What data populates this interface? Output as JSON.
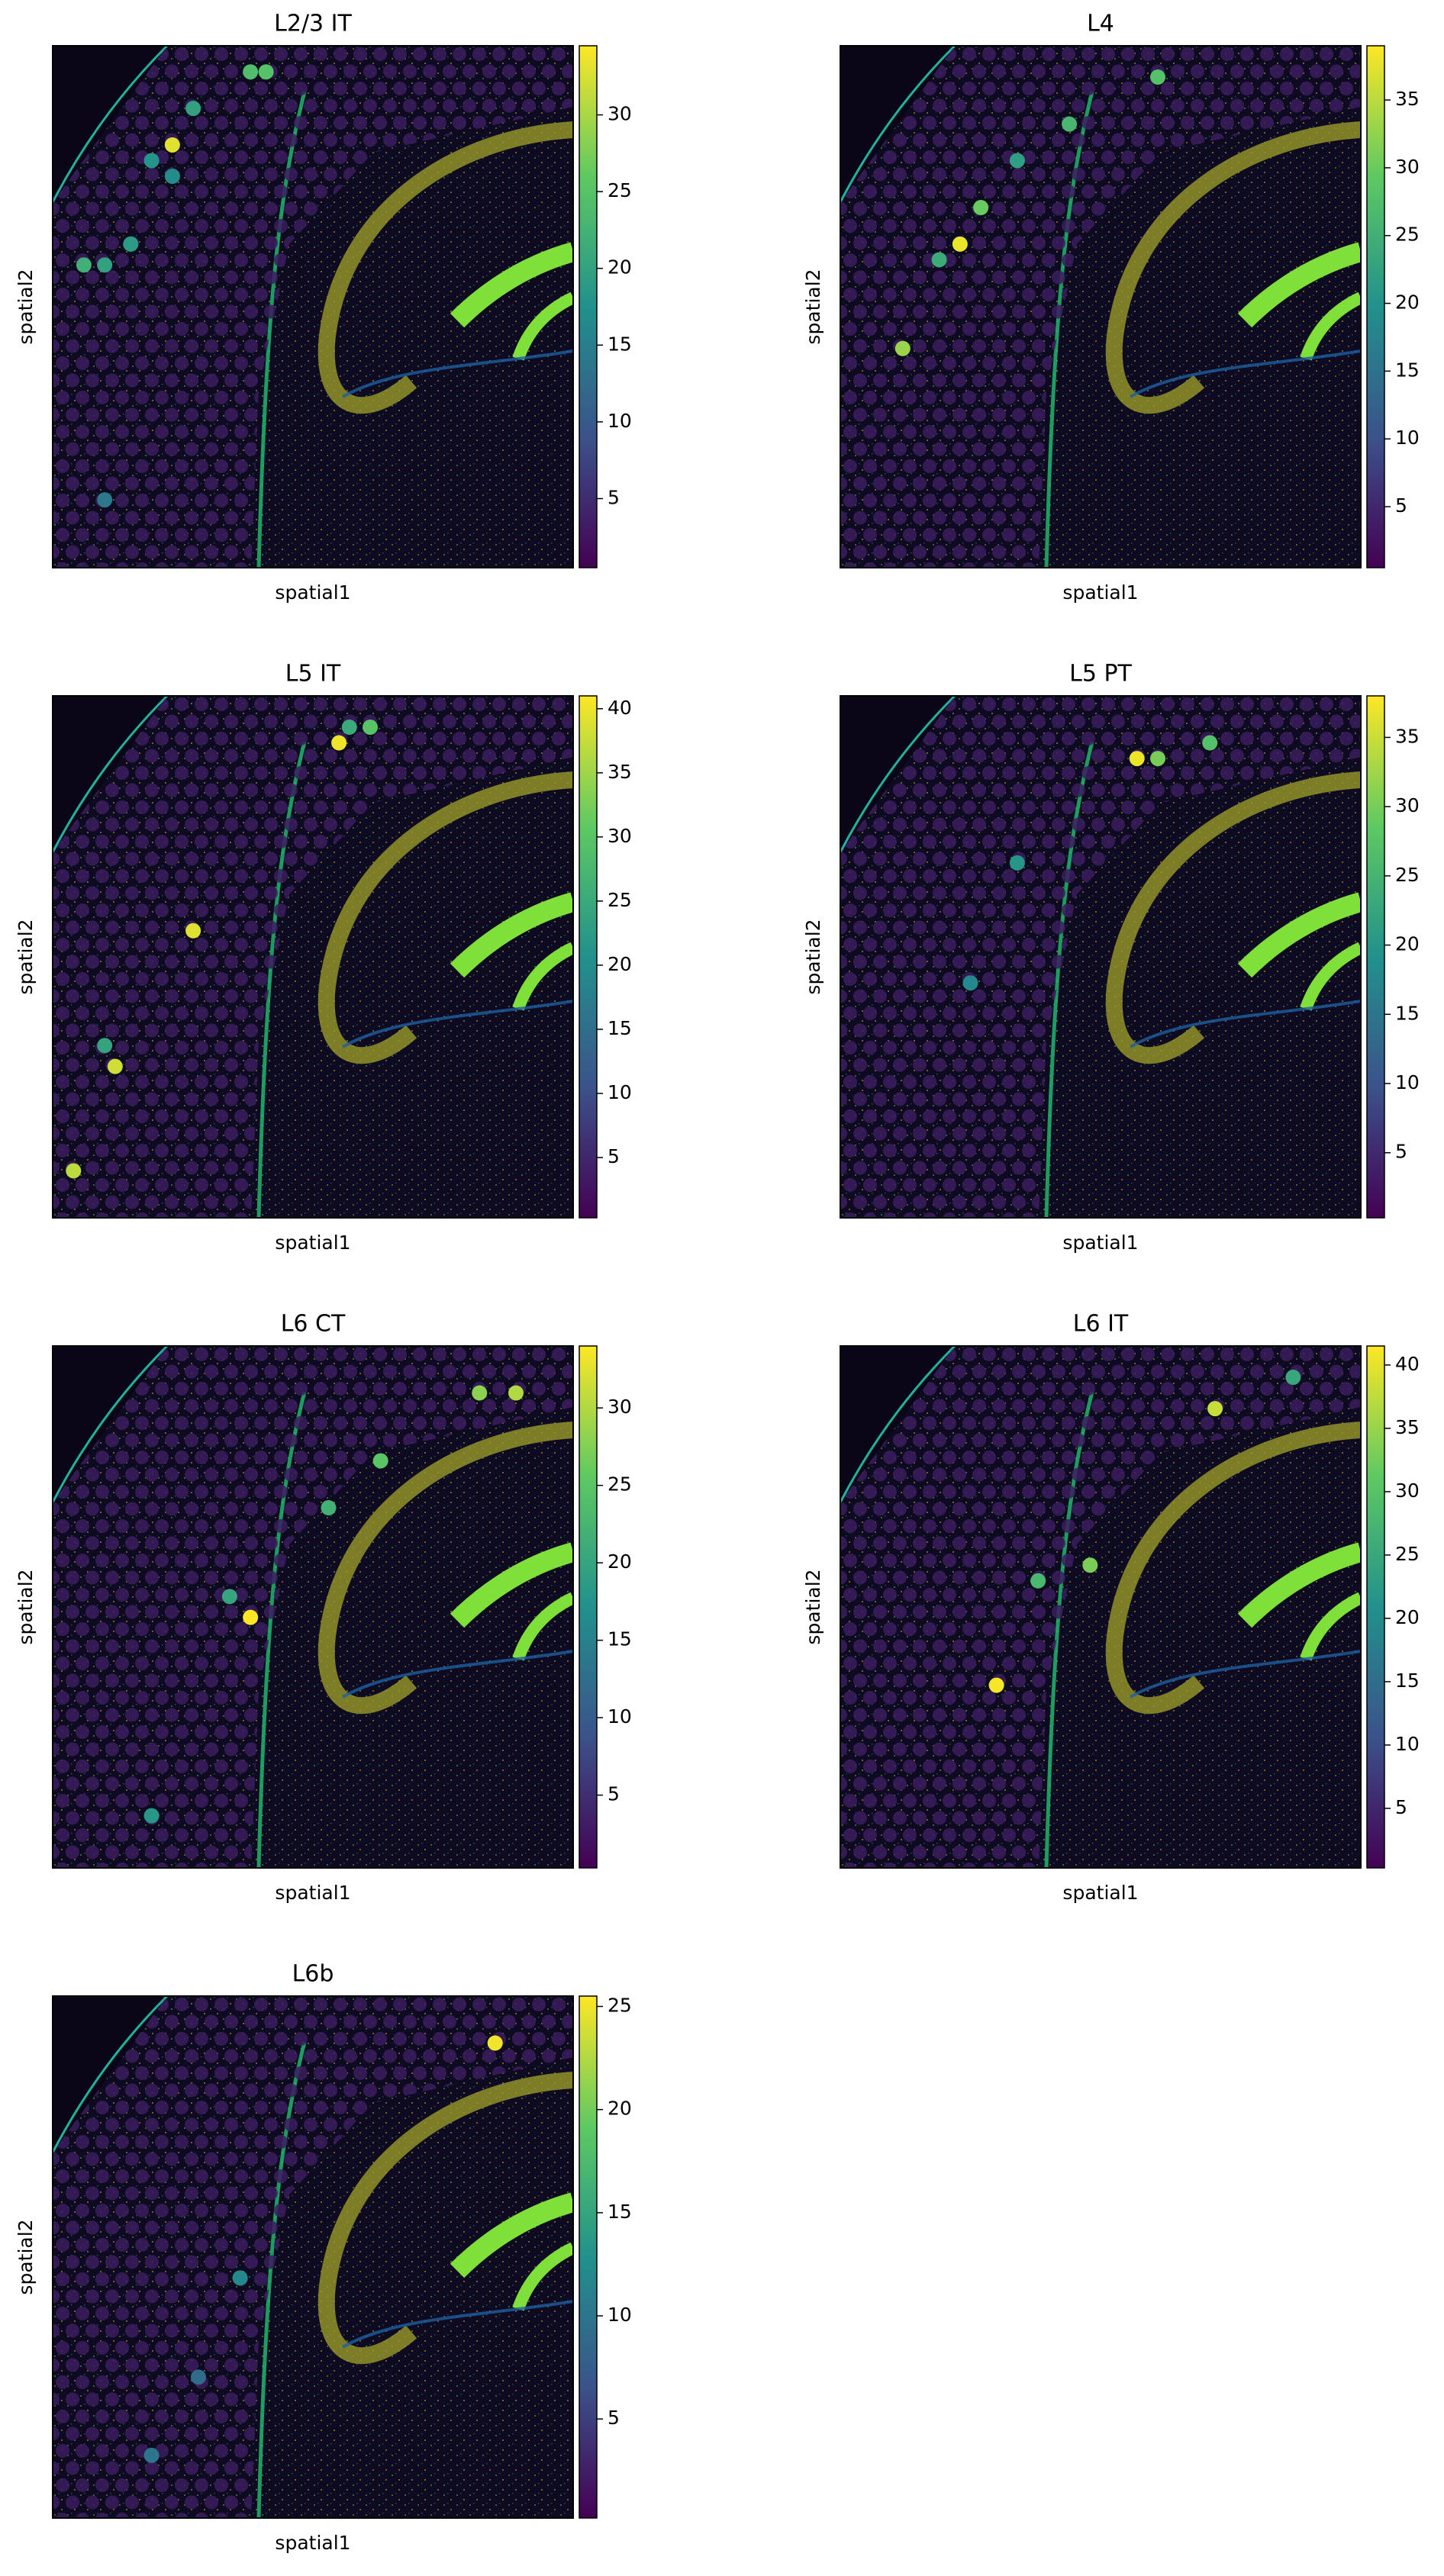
{
  "chart_data": [
    {
      "type": "scatter",
      "title": "L2/3 IT",
      "xlabel": "spatial1",
      "ylabel": "spatial2",
      "xlim": [
        0,
        1
      ],
      "ylim": [
        1,
        0
      ],
      "colormap": "viridis",
      "x": [
        0.23,
        0.38,
        0.41,
        0.06,
        0.1,
        0.15,
        0.27,
        0.19,
        0.23,
        0.1
      ],
      "y": [
        0.19,
        0.05,
        0.05,
        0.42,
        0.42,
        0.38,
        0.12,
        0.22,
        0.25,
        0.87
      ],
      "values": [
        33,
        24,
        25,
        22,
        20,
        19,
        20,
        18,
        17,
        14
      ],
      "clim": [
        0.5,
        34.5
      ],
      "cticks": [
        5,
        10,
        15,
        20,
        25,
        30
      ]
    },
    {
      "type": "scatter",
      "title": "L4",
      "xlabel": "spatial1",
      "ylabel": "spatial2",
      "xlim": [
        0,
        1
      ],
      "ylim": [
        1,
        0
      ],
      "colormap": "viridis",
      "x": [
        0.23,
        0.12,
        0.27,
        0.61,
        0.44,
        0.19,
        0.34
      ],
      "y": [
        0.38,
        0.58,
        0.31,
        0.06,
        0.15,
        0.41,
        0.22
      ],
      "values": [
        38,
        33,
        30,
        28,
        26,
        24,
        22
      ],
      "clim": [
        0.5,
        39
      ],
      "cticks": [
        5,
        10,
        15,
        20,
        25,
        30,
        35
      ]
    },
    {
      "type": "scatter",
      "title": "L5 IT",
      "xlabel": "spatial1",
      "ylabel": "spatial2",
      "xlim": [
        0,
        1
      ],
      "ylim": [
        1,
        0
      ],
      "colormap": "viridis",
      "x": [
        0.55,
        0.27,
        0.12,
        0.04,
        0.61,
        0.57,
        0.1
      ],
      "y": [
        0.09,
        0.45,
        0.71,
        0.91,
        0.06,
        0.06,
        0.67
      ],
      "values": [
        40,
        39,
        38,
        37,
        30,
        25,
        24
      ],
      "clim": [
        0.3,
        41
      ],
      "cticks": [
        5,
        10,
        15,
        20,
        25,
        30,
        35,
        40
      ]
    },
    {
      "type": "scatter",
      "title": "L5 PT",
      "xlabel": "spatial1",
      "ylabel": "spatial2",
      "xlim": [
        0,
        1
      ],
      "ylim": [
        1,
        0
      ],
      "colormap": "viridis",
      "x": [
        0.57,
        0.61,
        0.71,
        0.34,
        0.25
      ],
      "y": [
        0.12,
        0.12,
        0.09,
        0.32,
        0.55
      ],
      "values": [
        37,
        30,
        27,
        20,
        18
      ],
      "clim": [
        0.3,
        38
      ],
      "cticks": [
        5,
        10,
        15,
        20,
        25,
        30,
        35
      ]
    },
    {
      "type": "scatter",
      "title": "L6 CT",
      "xlabel": "spatial1",
      "ylabel": "spatial2",
      "xlim": [
        0,
        1
      ],
      "ylim": [
        1,
        0
      ],
      "colormap": "viridis",
      "x": [
        0.38,
        0.89,
        0.82,
        0.63,
        0.53,
        0.34,
        0.19
      ],
      "y": [
        0.52,
        0.09,
        0.09,
        0.22,
        0.31,
        0.48,
        0.9
      ],
      "values": [
        34,
        30,
        28,
        25,
        22,
        20,
        18
      ],
      "clim": [
        0.3,
        34
      ],
      "cticks": [
        5,
        10,
        15,
        20,
        25,
        30
      ]
    },
    {
      "type": "scatter",
      "title": "L6 IT",
      "xlabel": "spatial1",
      "ylabel": "spatial2",
      "xlim": [
        0,
        1
      ],
      "ylim": [
        1,
        0
      ],
      "colormap": "viridis",
      "x": [
        0.3,
        0.72,
        0.48,
        0.38,
        0.87
      ],
      "y": [
        0.65,
        0.12,
        0.42,
        0.45,
        0.06
      ],
      "values": [
        41,
        38,
        33,
        28,
        25
      ],
      "clim": [
        0.3,
        41.5
      ],
      "cticks": [
        5,
        10,
        15,
        20,
        25,
        30,
        35,
        40
      ]
    },
    {
      "type": "scatter",
      "title": "L6b",
      "xlabel": "spatial1",
      "ylabel": "spatial2",
      "xlim": [
        0,
        1
      ],
      "ylim": [
        1,
        0
      ],
      "colormap": "viridis",
      "x": [
        0.85,
        0.36,
        0.19,
        0.28
      ],
      "y": [
        0.09,
        0.54,
        0.88,
        0.73
      ],
      "values": [
        25,
        12,
        10,
        9
      ],
      "clim": [
        0.2,
        25.5
      ],
      "cticks": [
        5,
        10,
        15,
        20,
        25
      ]
    }
  ]
}
